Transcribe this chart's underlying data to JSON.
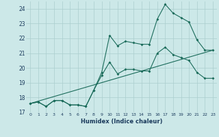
{
  "xlabel": "Humidex (Indice chaleur)",
  "bg_color": "#cce8e8",
  "grid_color": "#aacece",
  "line_color": "#1a6b5a",
  "xlim": [
    -0.5,
    23.5
  ],
  "ylim": [
    17,
    24.5
  ],
  "yticks": [
    17,
    18,
    19,
    20,
    21,
    22,
    23,
    24
  ],
  "xticks": [
    0,
    1,
    2,
    3,
    4,
    5,
    6,
    7,
    8,
    9,
    10,
    11,
    12,
    13,
    14,
    15,
    16,
    17,
    18,
    19,
    20,
    21,
    22,
    23
  ],
  "line1_x": [
    0,
    1,
    2,
    3,
    4,
    5,
    6,
    7,
    8,
    9,
    10,
    11,
    12,
    13,
    14,
    15,
    16,
    17,
    18,
    19,
    20,
    21,
    22,
    23
  ],
  "line1_y": [
    17.6,
    17.7,
    17.4,
    17.8,
    17.8,
    17.5,
    17.5,
    17.4,
    18.5,
    19.7,
    22.2,
    21.5,
    21.8,
    21.7,
    21.6,
    21.6,
    23.3,
    24.3,
    23.7,
    23.4,
    23.1,
    21.9,
    21.2,
    21.2
  ],
  "line2_x": [
    0,
    1,
    2,
    3,
    4,
    5,
    6,
    7,
    8,
    9,
    10,
    11,
    12,
    13,
    14,
    15,
    16,
    17,
    18,
    19,
    20,
    21,
    22,
    23
  ],
  "line2_y": [
    17.6,
    17.7,
    17.4,
    17.8,
    17.8,
    17.5,
    17.5,
    17.4,
    18.5,
    19.5,
    20.4,
    19.6,
    19.9,
    19.9,
    19.8,
    19.8,
    21.0,
    21.4,
    20.9,
    20.7,
    20.5,
    19.7,
    19.3,
    19.3
  ],
  "line3_x": [
    0,
    23
  ],
  "line3_y": [
    17.6,
    21.2
  ]
}
